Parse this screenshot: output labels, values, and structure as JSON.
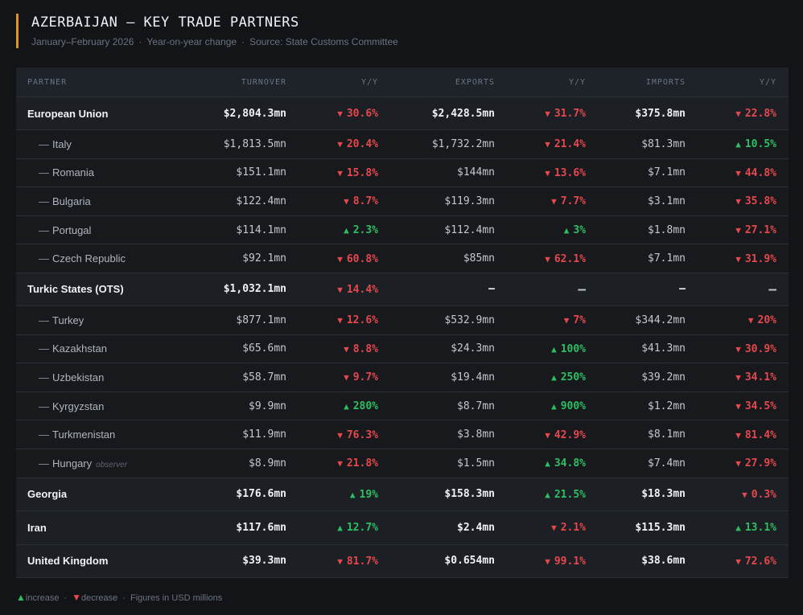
{
  "header": {
    "title": "AZERBAIJAN — KEY TRADE PARTNERS",
    "period": "January–February 2026",
    "mode": "Year-on-year change",
    "source": "Source: State Customs Committee"
  },
  "table": {
    "columns": [
      "PARTNER",
      "TURNOVER",
      "Y/Y",
      "EXPORTS",
      "Y/Y",
      "IMPORTS",
      "Y/Y"
    ],
    "rows": [
      {
        "kind": "group",
        "name": "European Union",
        "turnover": "$2,804.3mn",
        "turnover_yy": {
          "dir": "down",
          "text": "30.6%"
        },
        "exports": "$2,428.5mn",
        "exports_yy": {
          "dir": "down",
          "text": "31.7%"
        },
        "imports": "$375.8mn",
        "imports_yy": {
          "dir": "down",
          "text": "22.8%"
        }
      },
      {
        "kind": "child",
        "name": "Italy",
        "turnover": "$1,813.5mn",
        "turnover_yy": {
          "dir": "down",
          "text": "20.4%"
        },
        "exports": "$1,732.2mn",
        "exports_yy": {
          "dir": "down",
          "text": "21.4%"
        },
        "imports": "$81.3mn",
        "imports_yy": {
          "dir": "up",
          "text": "10.5%"
        }
      },
      {
        "kind": "child",
        "name": "Romania",
        "turnover": "$151.1mn",
        "turnover_yy": {
          "dir": "down",
          "text": "15.8%"
        },
        "exports": "$144mn",
        "exports_yy": {
          "dir": "down",
          "text": "13.6%"
        },
        "imports": "$7.1mn",
        "imports_yy": {
          "dir": "down",
          "text": "44.8%"
        }
      },
      {
        "kind": "child",
        "name": "Bulgaria",
        "turnover": "$122.4mn",
        "turnover_yy": {
          "dir": "down",
          "text": "8.7%"
        },
        "exports": "$119.3mn",
        "exports_yy": {
          "dir": "down",
          "text": "7.7%"
        },
        "imports": "$3.1mn",
        "imports_yy": {
          "dir": "down",
          "text": "35.8%"
        }
      },
      {
        "kind": "child",
        "name": "Portugal",
        "turnover": "$114.1mn",
        "turnover_yy": {
          "dir": "up",
          "text": "2.3%"
        },
        "exports": "$112.4mn",
        "exports_yy": {
          "dir": "up",
          "text": "3%"
        },
        "imports": "$1.8mn",
        "imports_yy": {
          "dir": "down",
          "text": "27.1%"
        }
      },
      {
        "kind": "child",
        "name": "Czech Republic",
        "turnover": "$92.1mn",
        "turnover_yy": {
          "dir": "down",
          "text": "60.8%"
        },
        "exports": "$85mn",
        "exports_yy": {
          "dir": "down",
          "text": "62.1%"
        },
        "imports": "$7.1mn",
        "imports_yy": {
          "dir": "down",
          "text": "31.9%"
        }
      },
      {
        "kind": "group",
        "name": "Turkic States (OTS)",
        "turnover": "$1,032.1mn",
        "turnover_yy": {
          "dir": "down",
          "text": "14.4%"
        },
        "exports": "—",
        "exports_yy": null,
        "imports": "—",
        "imports_yy": null
      },
      {
        "kind": "child",
        "name": "Turkey",
        "turnover": "$877.1mn",
        "turnover_yy": {
          "dir": "down",
          "text": "12.6%"
        },
        "exports": "$532.9mn",
        "exports_yy": {
          "dir": "down",
          "text": "7%"
        },
        "imports": "$344.2mn",
        "imports_yy": {
          "dir": "down",
          "text": "20%"
        }
      },
      {
        "kind": "child",
        "name": "Kazakhstan",
        "turnover": "$65.6mn",
        "turnover_yy": {
          "dir": "down",
          "text": "8.8%"
        },
        "exports": "$24.3mn",
        "exports_yy": {
          "dir": "up",
          "text": "100%"
        },
        "imports": "$41.3mn",
        "imports_yy": {
          "dir": "down",
          "text": "30.9%"
        }
      },
      {
        "kind": "child",
        "name": "Uzbekistan",
        "turnover": "$58.7mn",
        "turnover_yy": {
          "dir": "down",
          "text": "9.7%"
        },
        "exports": "$19.4mn",
        "exports_yy": {
          "dir": "up",
          "text": "250%"
        },
        "imports": "$39.2mn",
        "imports_yy": {
          "dir": "down",
          "text": "34.1%"
        }
      },
      {
        "kind": "child",
        "name": "Kyrgyzstan",
        "turnover": "$9.9mn",
        "turnover_yy": {
          "dir": "up",
          "text": "280%"
        },
        "exports": "$8.7mn",
        "exports_yy": {
          "dir": "up",
          "text": "900%"
        },
        "imports": "$1.2mn",
        "imports_yy": {
          "dir": "down",
          "text": "34.5%"
        }
      },
      {
        "kind": "child",
        "name": "Turkmenistan",
        "turnover": "$11.9mn",
        "turnover_yy": {
          "dir": "down",
          "text": "76.3%"
        },
        "exports": "$3.8mn",
        "exports_yy": {
          "dir": "down",
          "text": "42.9%"
        },
        "imports": "$8.1mn",
        "imports_yy": {
          "dir": "down",
          "text": "81.4%"
        }
      },
      {
        "kind": "child",
        "name": "Hungary",
        "note": "observer",
        "turnover": "$8.9mn",
        "turnover_yy": {
          "dir": "down",
          "text": "21.8%"
        },
        "exports": "$1.5mn",
        "exports_yy": {
          "dir": "up",
          "text": "34.8%"
        },
        "imports": "$7.4mn",
        "imports_yy": {
          "dir": "down",
          "text": "27.9%"
        }
      },
      {
        "kind": "group",
        "name": "Georgia",
        "turnover": "$176.6mn",
        "turnover_yy": {
          "dir": "up",
          "text": "19%"
        },
        "exports": "$158.3mn",
        "exports_yy": {
          "dir": "up",
          "text": "21.5%"
        },
        "imports": "$18.3mn",
        "imports_yy": {
          "dir": "down",
          "text": "0.3%"
        }
      },
      {
        "kind": "group",
        "name": "Iran",
        "turnover": "$117.6mn",
        "turnover_yy": {
          "dir": "up",
          "text": "12.7%"
        },
        "exports": "$2.4mn",
        "exports_yy": {
          "dir": "down",
          "text": "2.1%"
        },
        "imports": "$115.3mn",
        "imports_yy": {
          "dir": "up",
          "text": "13.1%"
        }
      },
      {
        "kind": "group",
        "name": "United Kingdom",
        "turnover": "$39.3mn",
        "turnover_yy": {
          "dir": "down",
          "text": "81.7%"
        },
        "exports": "$0.654mn",
        "exports_yy": {
          "dir": "down",
          "text": "99.1%"
        },
        "imports": "$38.6mn",
        "imports_yy": {
          "dir": "down",
          "text": "72.6%"
        }
      }
    ],
    "empty_yy": "—"
  },
  "legend": {
    "increase": "increase",
    "decrease": "decrease",
    "units": "Figures in USD millions"
  },
  "colors": {
    "accent": "#d9952a",
    "up": "#2fbf63",
    "down": "#e5484d"
  }
}
